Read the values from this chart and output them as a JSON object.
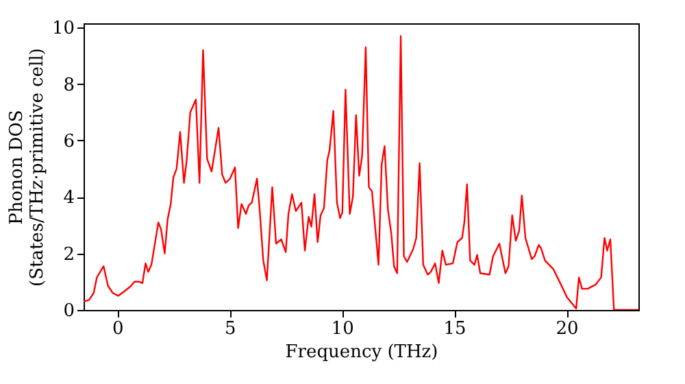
{
  "chart_data": {
    "type": "line",
    "xlabel": "Frequency (THz)",
    "ylabel": "Phonon DOS\n(States/THz·primitive cell)",
    "xlim": [
      -1.5,
      23.2
    ],
    "ylim": [
      0,
      10.15
    ],
    "xticks": [
      0,
      5,
      10,
      15,
      20
    ],
    "yticks": [
      0,
      2,
      4,
      6,
      8,
      10
    ],
    "grid": false,
    "line_style": "solid",
    "series": [
      {
        "color": "#ff0000",
        "x": [
          -1.5,
          -1.26,
          -1.05,
          -0.91,
          -0.61,
          -0.41,
          -0.2,
          0.04,
          0.3,
          0.61,
          0.77,
          0.98,
          1.12,
          1.26,
          1.38,
          1.52,
          1.83,
          1.95,
          2.11,
          2.24,
          2.38,
          2.5,
          2.64,
          2.8,
          2.97,
          3.09,
          3.25,
          3.5,
          3.66,
          3.82,
          4.0,
          4.2,
          4.51,
          4.67,
          4.82,
          5.02,
          5.24,
          5.38,
          5.53,
          5.73,
          5.85,
          5.99,
          6.22,
          6.34,
          6.5,
          6.66,
          6.9,
          7.07,
          7.3,
          7.5,
          7.62,
          7.78,
          7.95,
          8.2,
          8.35,
          8.52,
          8.64,
          8.78,
          8.92,
          9.05,
          9.2,
          9.35,
          9.45,
          9.62,
          9.78,
          9.92,
          10.02,
          10.16,
          10.35,
          10.49,
          10.63,
          10.77,
          10.9,
          11.06,
          11.2,
          11.34,
          11.63,
          11.77,
          11.9,
          12.05,
          12.2,
          12.32,
          12.46,
          12.62,
          12.76,
          12.9,
          13.17,
          13.31,
          13.46,
          13.62,
          13.82,
          13.96,
          14.15,
          14.31,
          14.47,
          14.63,
          14.94,
          15.14,
          15.35,
          15.45,
          15.57,
          15.71,
          15.9,
          16.02,
          16.16,
          16.57,
          16.73,
          17.01,
          17.28,
          17.42,
          17.58,
          17.74,
          17.89,
          18.01,
          18.17,
          18.45,
          18.58,
          18.76,
          18.86,
          19.04,
          19.41,
          19.72,
          20.02,
          20.43,
          20.55,
          20.69,
          20.94,
          21.3,
          21.54,
          21.69,
          21.81,
          21.95,
          22.11,
          23.2
        ],
        "values": [
          0.3,
          0.35,
          0.6,
          1.15,
          1.55,
          0.85,
          0.6,
          0.5,
          0.65,
          0.85,
          1.0,
          1.0,
          0.95,
          1.65,
          1.35,
          1.6,
          3.1,
          2.85,
          2.0,
          3.2,
          3.75,
          4.7,
          5.0,
          6.3,
          4.5,
          5.3,
          7.0,
          7.45,
          4.5,
          9.2,
          5.35,
          4.9,
          6.45,
          4.8,
          4.5,
          4.65,
          5.05,
          2.9,
          3.75,
          3.4,
          3.7,
          3.8,
          4.65,
          3.55,
          1.75,
          1.05,
          4.35,
          2.35,
          2.5,
          2.05,
          3.4,
          4.1,
          3.5,
          3.8,
          2.1,
          3.3,
          2.95,
          4.1,
          2.4,
          3.35,
          3.6,
          5.3,
          5.65,
          7.05,
          3.8,
          3.25,
          3.45,
          7.8,
          3.4,
          4.0,
          6.9,
          4.75,
          5.45,
          9.3,
          4.35,
          4.2,
          1.6,
          5.15,
          5.8,
          3.55,
          2.7,
          1.55,
          1.3,
          9.7,
          1.9,
          1.7,
          2.15,
          2.55,
          5.2,
          1.6,
          1.25,
          1.35,
          1.65,
          0.95,
          2.1,
          1.6,
          1.65,
          2.4,
          2.55,
          3.1,
          4.45,
          1.75,
          1.6,
          1.95,
          1.3,
          1.25,
          1.9,
          2.35,
          1.3,
          1.55,
          3.35,
          2.45,
          2.8,
          4.05,
          2.55,
          1.8,
          1.9,
          2.3,
          2.2,
          1.75,
          1.45,
          0.95,
          0.45,
          0.05,
          1.15,
          0.75,
          0.75,
          0.9,
          1.15,
          2.55,
          2.1,
          2.5,
          0,
          0
        ]
      }
    ]
  }
}
